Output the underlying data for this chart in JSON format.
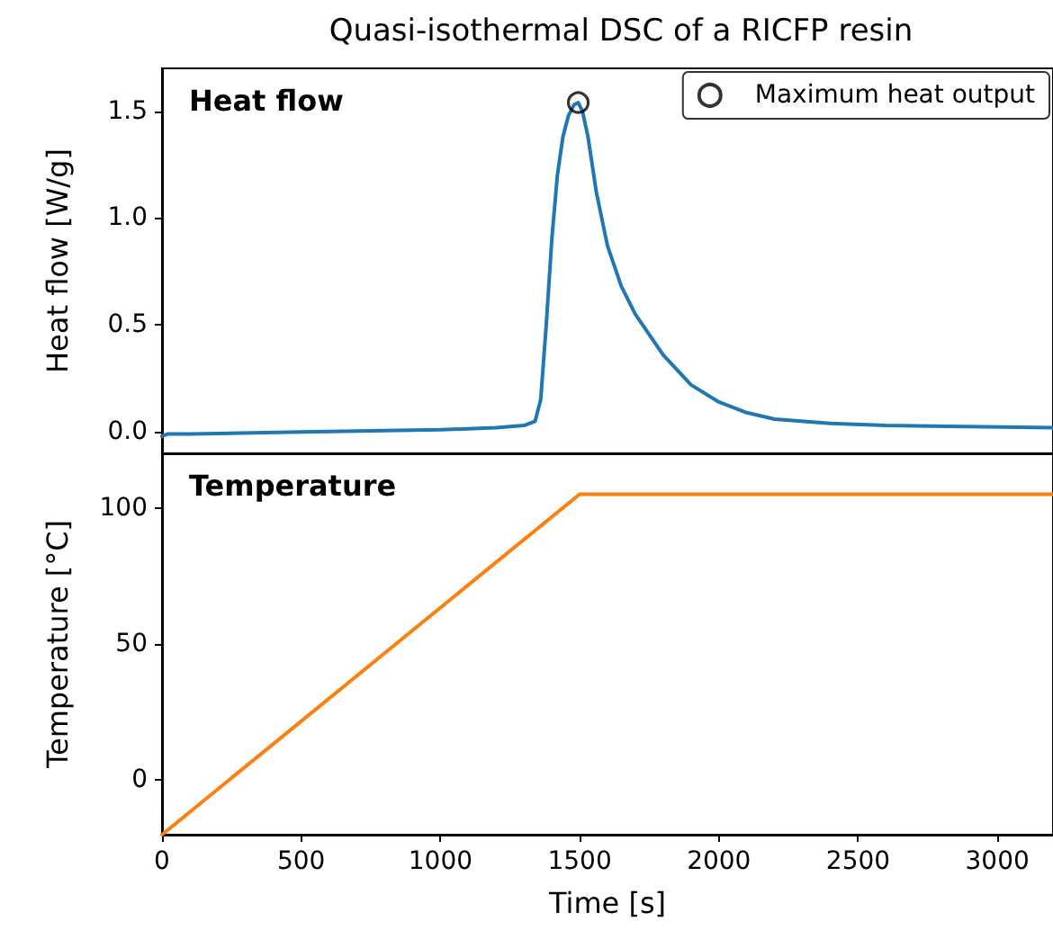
{
  "chart_data": [
    {
      "type": "line",
      "title": "Quasi-isothermal DSC of a RICFP resin",
      "ylabel": "Heat flow [W/g]",
      "annotations": [
        "Heat flow"
      ],
      "xlim": [
        0,
        3200
      ],
      "xticks": [
        0,
        500,
        1000,
        1500,
        2000,
        2500,
        3000
      ],
      "ylim": [
        -0.1,
        1.7
      ],
      "yticks": [
        {
          "value": 0,
          "label": "0.0"
        },
        0.5,
        {
          "value": 1,
          "label": "1.0"
        },
        1.5
      ],
      "tick_labels": "y",
      "legend": "top right",
      "grid": false,
      "series": [
        {
          "color": "#1f77b4",
          "marker": "none",
          "x": [
            0,
            20,
            100,
            500,
            1000,
            1200,
            1300,
            1340,
            1360,
            1380,
            1400,
            1420,
            1440,
            1460,
            1480,
            1495,
            1510,
            1530,
            1560,
            1600,
            1650,
            1700,
            1800,
            1900,
            2000,
            2100,
            2200,
            2400,
            2600,
            3200
          ],
          "values": [
            -0.02,
            -0.01,
            -0.01,
            0.0,
            0.01,
            0.02,
            0.03,
            0.05,
            0.15,
            0.5,
            0.9,
            1.2,
            1.38,
            1.48,
            1.53,
            1.54,
            1.5,
            1.38,
            1.12,
            0.87,
            0.68,
            0.55,
            0.36,
            0.22,
            0.14,
            0.09,
            0.06,
            0.04,
            0.03,
            0.02
          ]
        },
        {
          "type": "scatter",
          "name": "Maximum heat output",
          "color": "#000000",
          "marker": "circle",
          "x": [
            1495
          ],
          "values": [
            1.54
          ]
        }
      ]
    },
    {
      "type": "line",
      "xlabel": "Time [s]",
      "ylabel": "Temperature [°C]",
      "annotations": [
        "Temperature"
      ],
      "xlim": [
        0,
        3200
      ],
      "xticks": [
        0,
        500,
        1000,
        1500,
        2000,
        2500,
        3000
      ],
      "ylim": [
        -20,
        120
      ],
      "yticks": [
        0,
        50,
        100
      ],
      "grid": false,
      "series": [
        {
          "color": "#ff7f0e",
          "marker": "none",
          "x": [
            0,
            1500,
            3200
          ],
          "values": [
            -20,
            105,
            105
          ]
        }
      ]
    }
  ]
}
